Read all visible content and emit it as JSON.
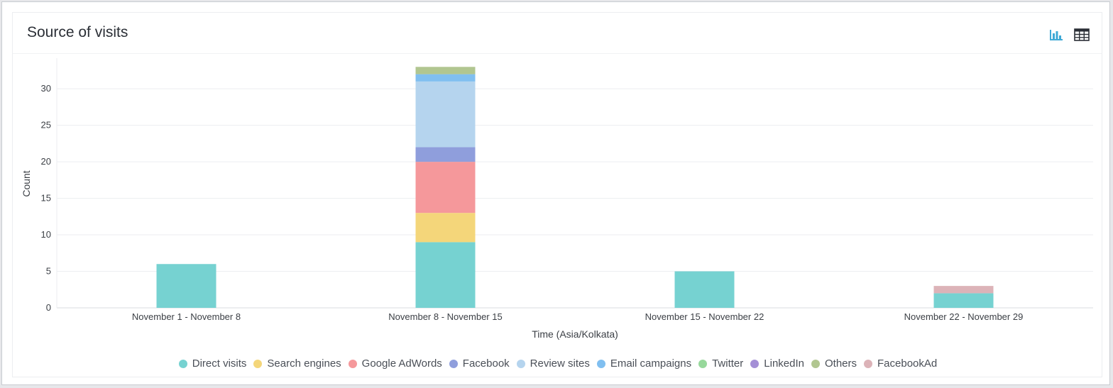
{
  "card": {
    "title": "Source of visits"
  },
  "toolbar": {
    "chart_view_icon": "bar-chart-icon",
    "table_view_icon": "table-grid-icon",
    "active_color": "#3fa9d6"
  },
  "chart_data": {
    "type": "bar",
    "stacked": true,
    "title": "",
    "xlabel": "Time (Asia/Kolkata)",
    "ylabel": "Count",
    "ylim": [
      0,
      34
    ],
    "yticks": [
      0,
      5,
      10,
      15,
      20,
      25,
      30
    ],
    "grid": true,
    "legend_position": "bottom",
    "categories": [
      "November 1 - November 8",
      "November 8 - November 15",
      "November 15 - November 22",
      "November 22 - November 29"
    ],
    "series": [
      {
        "name": "Direct visits",
        "color": "#76d2d1",
        "values": [
          6,
          9,
          5,
          2
        ]
      },
      {
        "name": "Search engines",
        "color": "#f4d67a",
        "values": [
          0,
          4,
          0,
          0
        ]
      },
      {
        "name": "Google AdWords",
        "color": "#f5989b",
        "values": [
          0,
          7,
          0,
          0
        ]
      },
      {
        "name": "Facebook",
        "color": "#8f9edc",
        "values": [
          0,
          2,
          0,
          0
        ]
      },
      {
        "name": "Review sites",
        "color": "#b5d4ee",
        "values": [
          0,
          9,
          0,
          0
        ]
      },
      {
        "name": "Email campaigns",
        "color": "#80bff0",
        "values": [
          0,
          1,
          0,
          0
        ]
      },
      {
        "name": "Twitter",
        "color": "#97d89b",
        "values": [
          0,
          0,
          0,
          0
        ]
      },
      {
        "name": "LinkedIn",
        "color": "#a48fd6",
        "values": [
          0,
          0,
          0,
          0
        ]
      },
      {
        "name": "Others",
        "color": "#b1c690",
        "values": [
          0,
          1,
          0,
          0
        ]
      },
      {
        "name": "FacebookAd",
        "color": "#dcb3b8",
        "values": [
          0,
          0,
          0,
          1
        ]
      }
    ]
  }
}
